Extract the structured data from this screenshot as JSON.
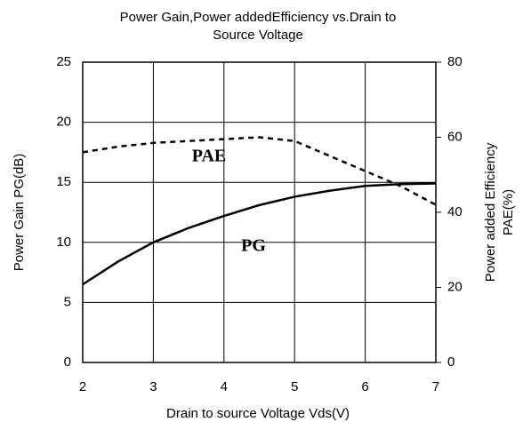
{
  "chart_data": {
    "type": "line",
    "title": [
      "Power Gain,Power addedEfficiency vs.Drain to",
      "Source Voltage"
    ],
    "xlabel": "Drain to source Voltage Vds(V)",
    "ylabel": "Power Gain PG(dB)",
    "y2label": [
      "Power added Efficiency",
      "PAE(%)"
    ],
    "x": [
      2,
      2.5,
      3,
      3.5,
      4,
      4.5,
      5,
      5.5,
      6,
      6.5,
      7
    ],
    "series": [
      {
        "name": "PG",
        "color": "#000000",
        "dash": false,
        "values": [
          6.5,
          8.4,
          10,
          11.2,
          12.2,
          13.1,
          13.8,
          14.3,
          14.7,
          14.85,
          14.9
        ]
      },
      {
        "name": "PAE",
        "color": "#000000",
        "dash": true,
        "axis": "y2",
        "values": [
          56,
          57.5,
          58.5,
          59,
          59.5,
          60,
          59,
          55,
          51,
          47,
          42
        ]
      }
    ],
    "xlim": [
      2,
      7
    ],
    "xticks": [
      2,
      3,
      4,
      5,
      6,
      7
    ],
    "ylim": [
      0,
      25
    ],
    "yticks": [
      0,
      5,
      10,
      15,
      20,
      25
    ],
    "y2lim": [
      0,
      80
    ],
    "y2ticks": [
      0,
      20,
      40,
      60,
      80
    ],
    "grid": true
  }
}
